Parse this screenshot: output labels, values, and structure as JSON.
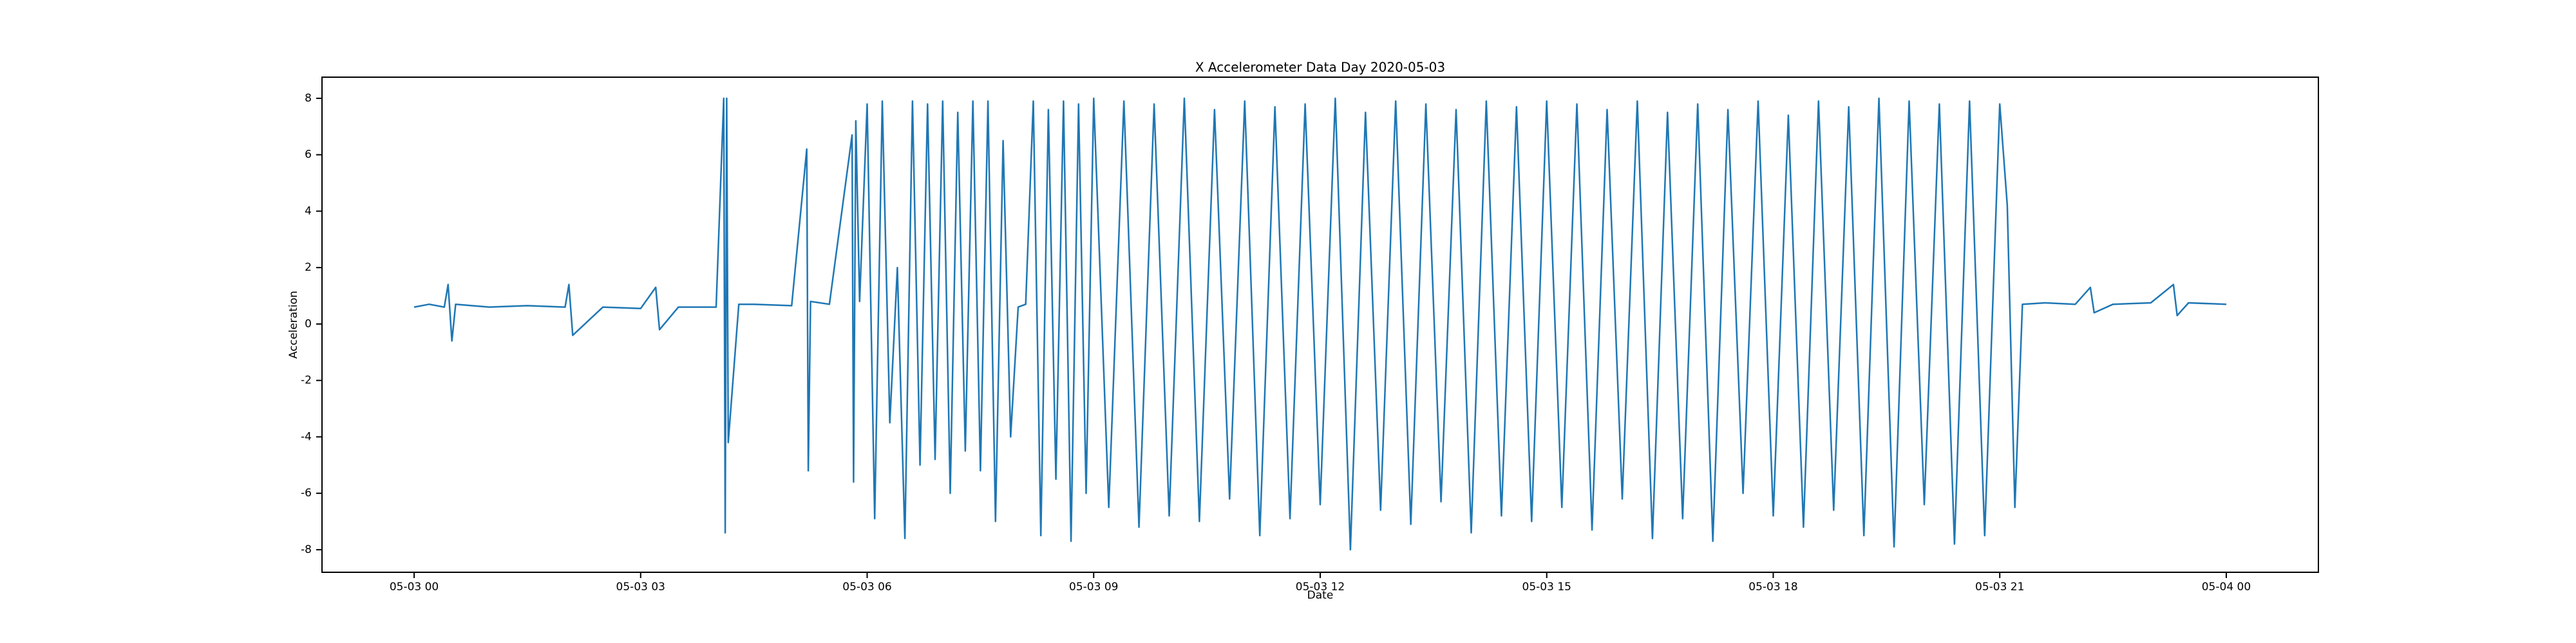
{
  "chart_data": {
    "type": "line",
    "title": "X Accelerometer Data Day 2020-05-03",
    "x_label": "Date",
    "y_label": "Acceleration",
    "color": "#1f77b4",
    "x": [
      0,
      0.2,
      0.4,
      0.45,
      0.5,
      0.55,
      1.0,
      1.5,
      2.0,
      2.05,
      2.1,
      2.5,
      3.0,
      3.2,
      3.25,
      3.5,
      4.0,
      4.1,
      4.12,
      4.14,
      4.16,
      4.3,
      4.5,
      5.0,
      5.2,
      5.22,
      5.25,
      5.5,
      5.8,
      5.82,
      5.85,
      5.9,
      6.0,
      6.1,
      6.2,
      6.3,
      6.4,
      6.5,
      6.6,
      6.7,
      6.8,
      6.9,
      7.0,
      7.1,
      7.2,
      7.3,
      7.4,
      7.5,
      7.6,
      7.7,
      7.8,
      7.9,
      8.0,
      8.1,
      8.2,
      8.3,
      8.4,
      8.5,
      8.6,
      8.7,
      8.8,
      8.9,
      9.0,
      9.2,
      9.4,
      9.6,
      9.8,
      10.0,
      10.2,
      10.4,
      10.6,
      10.8,
      11.0,
      11.2,
      11.4,
      11.6,
      11.8,
      12.0,
      12.2,
      12.4,
      12.6,
      12.8,
      13.0,
      13.2,
      13.4,
      13.6,
      13.8,
      14.0,
      14.2,
      14.4,
      14.6,
      14.8,
      15.0,
      15.2,
      15.4,
      15.6,
      15.8,
      16.0,
      16.2,
      16.4,
      16.6,
      16.8,
      17.0,
      17.2,
      17.4,
      17.6,
      17.8,
      18.0,
      18.2,
      18.4,
      18.6,
      18.8,
      19.0,
      19.2,
      19.4,
      19.6,
      19.8,
      20.0,
      20.2,
      20.4,
      20.6,
      20.8,
      21.0,
      21.1,
      21.2,
      21.3,
      21.6,
      22.0,
      22.2,
      22.25,
      22.5,
      23.0,
      23.3,
      23.35,
      23.5,
      24.0
    ],
    "values": [
      0.6,
      0.7,
      0.6,
      1.4,
      -0.6,
      0.7,
      0.6,
      0.65,
      0.6,
      1.4,
      -0.4,
      0.6,
      0.55,
      1.3,
      -0.2,
      0.6,
      0.6,
      8.0,
      -7.4,
      8.0,
      -4.2,
      0.7,
      0.7,
      0.65,
      6.2,
      -5.2,
      0.8,
      0.7,
      6.7,
      -5.6,
      7.2,
      0.8,
      7.8,
      -6.9,
      7.9,
      -3.5,
      2.0,
      -7.6,
      7.9,
      -5.0,
      7.8,
      -4.8,
      7.9,
      -6.0,
      7.5,
      -4.5,
      7.9,
      -5.2,
      7.9,
      -7.0,
      6.5,
      -4.0,
      0.6,
      0.7,
      7.9,
      -7.5,
      7.6,
      -5.5,
      7.9,
      -7.7,
      7.8,
      -6.0,
      8.0,
      -6.5,
      7.9,
      -7.2,
      7.8,
      -6.8,
      8.0,
      -7.0,
      7.6,
      -6.2,
      7.9,
      -7.5,
      7.7,
      -6.9,
      7.8,
      -6.4,
      8.0,
      -8.0,
      7.5,
      -6.6,
      7.9,
      -7.1,
      7.8,
      -6.3,
      7.6,
      -7.4,
      7.9,
      -6.8,
      7.7,
      -7.0,
      7.9,
      -6.5,
      7.8,
      -7.3,
      7.6,
      -6.2,
      7.9,
      -7.6,
      7.5,
      -6.9,
      7.8,
      -7.7,
      7.6,
      -6.0,
      7.9,
      -6.8,
      7.4,
      -7.2,
      7.9,
      -6.6,
      7.7,
      -7.5,
      8.0,
      -7.9,
      7.9,
      -6.4,
      7.8,
      -7.8,
      7.9,
      -7.5,
      7.8,
      4.2,
      -6.5,
      0.7,
      0.75,
      0.7,
      1.3,
      0.4,
      0.7,
      0.75,
      1.4,
      0.3,
      0.75,
      0.7
    ],
    "xlim": [
      -1.22,
      25.22
    ],
    "ylim": [
      -8.8,
      8.75
    ],
    "xticks": [
      {
        "value": 0,
        "label": "05-03 00"
      },
      {
        "value": 3,
        "label": "05-03 03"
      },
      {
        "value": 6,
        "label": "05-03 06"
      },
      {
        "value": 9,
        "label": "05-03 09"
      },
      {
        "value": 12,
        "label": "05-03 12"
      },
      {
        "value": 15,
        "label": "05-03 15"
      },
      {
        "value": 18,
        "label": "05-03 18"
      },
      {
        "value": 21,
        "label": "05-03 21"
      },
      {
        "value": 24,
        "label": "05-04 00"
      }
    ],
    "yticks": [
      -8,
      -6,
      -4,
      -2,
      0,
      2,
      4,
      6,
      8
    ]
  }
}
